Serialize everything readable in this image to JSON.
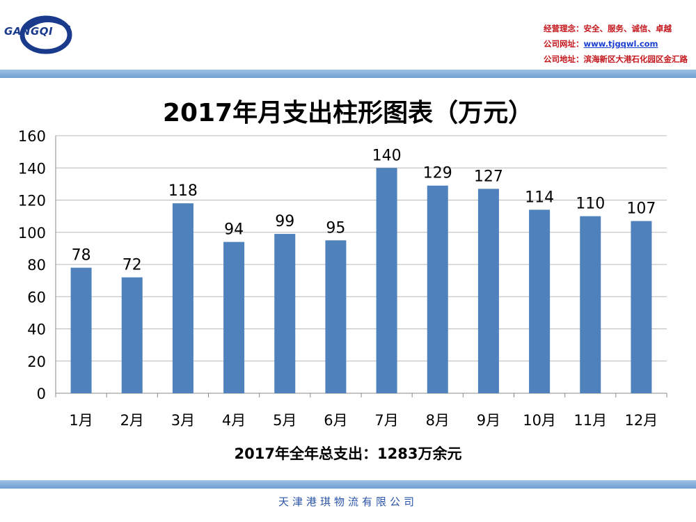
{
  "header": {
    "logo_text": "GANGQI",
    "philosophy": "经营理念：安全、服务、诚信、卓越",
    "website_label": "公司网址：",
    "website_url": "www.tjgqwl.com",
    "address": "公司地址：滨海新区大港石化园区金汇路"
  },
  "colors": {
    "bar": "#4f81bd",
    "band": "#7aa7d8",
    "header_text": "#c4161c",
    "footer_text": "#2a55a8"
  },
  "chart_data": {
    "type": "bar",
    "title": "2017年月支出柱形图表（万元）",
    "categories": [
      "1月",
      "2月",
      "3月",
      "4月",
      "5月",
      "6月",
      "7月",
      "8月",
      "9月",
      "10月",
      "11月",
      "12月"
    ],
    "values": [
      78,
      72,
      118,
      94,
      99,
      95,
      140,
      129,
      127,
      114,
      110,
      107
    ],
    "ylim": [
      0,
      160
    ],
    "yticks": [
      0,
      20,
      40,
      60,
      80,
      100,
      120,
      140,
      160
    ],
    "grid": true,
    "data_labels": true
  },
  "summary": "2017年全年总支出：1283万余元",
  "footer": "天津港琪物流有限公司"
}
